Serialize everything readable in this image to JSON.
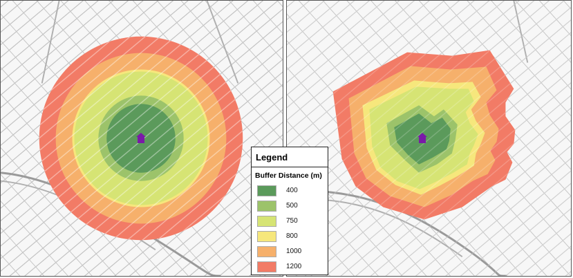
{
  "legend": {
    "title": "Legend",
    "subtitle": "Buffer Distance (m)",
    "items": [
      {
        "label": "400",
        "color": "#5b9a5b"
      },
      {
        "label": "500",
        "color": "#9cc36a"
      },
      {
        "label": "750",
        "color": "#d6e474"
      },
      {
        "label": "800",
        "color": "#f6e77c"
      },
      {
        "label": "1000",
        "color": "#f6b06b"
      },
      {
        "label": "1200",
        "color": "#f27b66"
      }
    ]
  },
  "map": {
    "street_color": "#c8c8c8",
    "street_edge_color": "#a0a0a0",
    "highway_color": "#9a9a9a",
    "marker_color": "#7a1aa8",
    "marker_icon": "house-icon"
  }
}
